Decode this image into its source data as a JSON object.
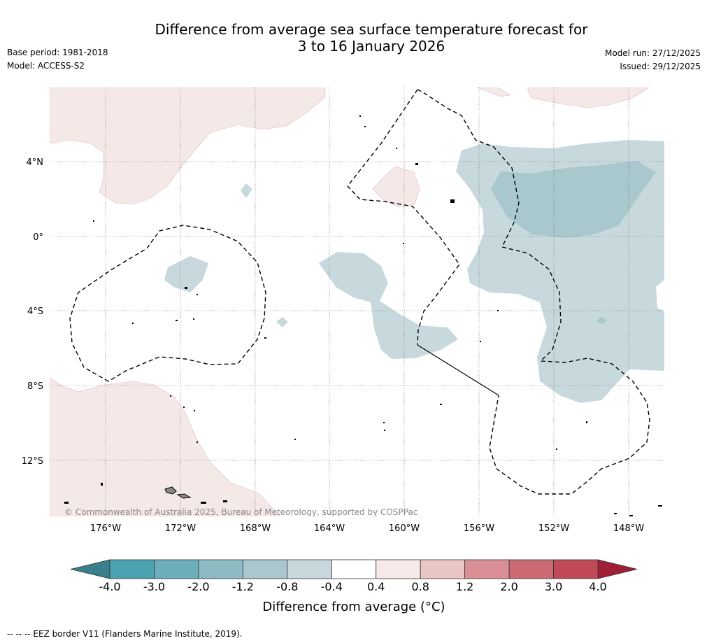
{
  "title": {
    "line1": "Difference from average sea surface temperature forecast for",
    "line2": "3 to 16 January 2026"
  },
  "meta_left": {
    "base_period": "Base period: 1981-2018",
    "model": "Model: ACCESS-S2"
  },
  "meta_right": {
    "model_run": "Model run: 27/12/2025",
    "issued": "Issued: 29/12/2025"
  },
  "map": {
    "copyright": "© Commonwealth of Australia 2025, Bureau of Meteorology, supported by COSPPac",
    "lat_labels": [
      "4°N",
      "0°",
      "4°S",
      "8°S",
      "12°S"
    ],
    "lon_labels": [
      "176°W",
      "172°W",
      "168°W",
      "164°W",
      "160°W",
      "156°W",
      "152°W",
      "148°W"
    ]
  },
  "colorbar": {
    "title": "Difference from average (°C)",
    "ticks": [
      "-4.0",
      "-3.0",
      "-2.0",
      "-1.2",
      "-0.8",
      "-0.4",
      "0.4",
      "0.8",
      "1.2",
      "2.0",
      "3.0",
      "4.0"
    ],
    "colors": [
      "#4aa2b2",
      "#6caebc",
      "#8dbbc3",
      "#a8c8cd",
      "#c7d9dd",
      "#ffffff",
      "#f6e9e8",
      "#e9c6c4",
      "#d98f95",
      "#cc6a74",
      "#c04a58"
    ],
    "under_color": "#3a7f8c",
    "over_color": "#a01f36"
  },
  "colors": {
    "warm_shade": "#f5e9e8",
    "cool_shade": "#c7d9dd",
    "cool_shade_deep": "#a8c8cd"
  },
  "footnote": "-- -- -- EEZ border V11 (Flanders Marine Institute, 2019)."
}
